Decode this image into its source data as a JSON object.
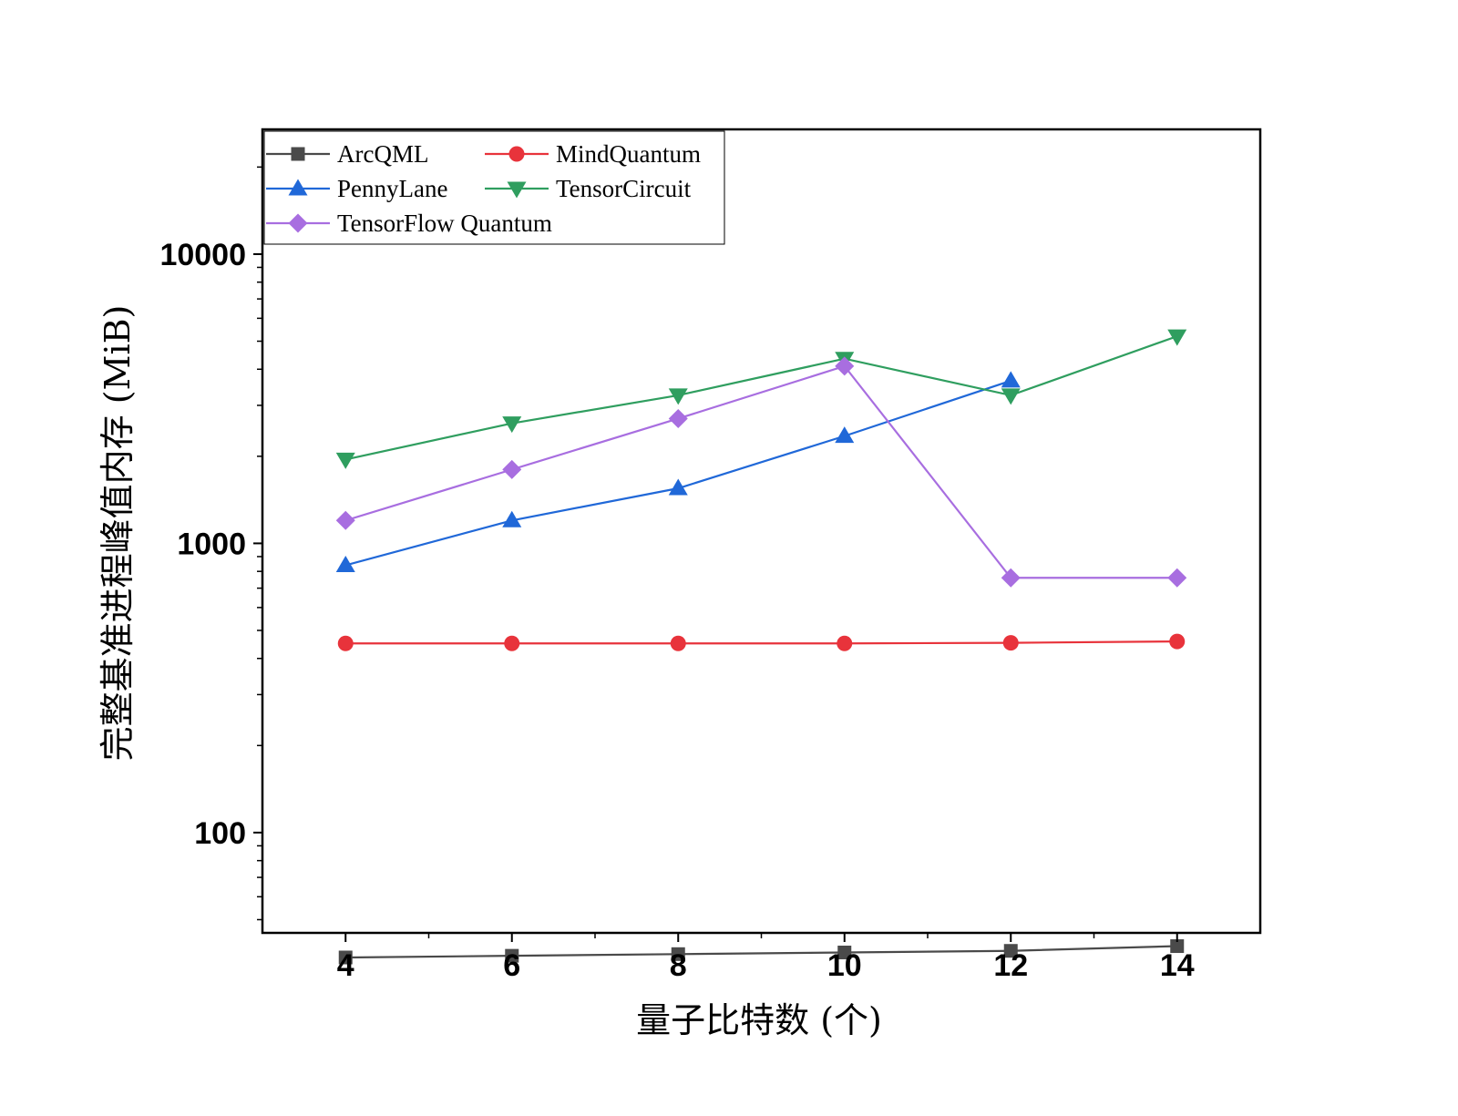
{
  "chart_data": {
    "type": "line",
    "xlabel": "量子比特数 (个)",
    "ylabel": "完整基准进程峰值内存 (MiB)",
    "x": [
      4,
      6,
      8,
      10,
      12,
      14
    ],
    "xlim": [
      3,
      15
    ],
    "x_ticks": [
      "4",
      "6",
      "8",
      "10",
      "12",
      "14"
    ],
    "yscale": "log",
    "ylim": [
      45,
      27000
    ],
    "y_ticks": [
      "100",
      "1000",
      "10000"
    ],
    "grid": false,
    "legend_position": "top-left",
    "series": [
      {
        "name": "ArcQML",
        "marker": "square",
        "color": "#4a4a4a",
        "values": [
          37,
          37.5,
          38,
          38.5,
          39,
          40.5
        ]
      },
      {
        "name": "MindQuantum",
        "marker": "circle",
        "color": "#e8333b",
        "values": [
          451,
          451,
          451,
          451,
          453,
          458
        ]
      },
      {
        "name": "PennyLane",
        "marker": "triangle-up",
        "color": "#2068d8",
        "values": [
          840,
          1200,
          1550,
          2350,
          3650,
          null
        ]
      },
      {
        "name": "TensorCircuit",
        "marker": "triangle-down",
        "color": "#2f9e5f",
        "values": [
          1950,
          2600,
          3250,
          4350,
          3250,
          5200
        ]
      },
      {
        "name": "TensorFlow Quantum",
        "marker": "diamond",
        "color": "#a86ee0",
        "values": [
          1200,
          1800,
          2700,
          4100,
          760,
          760
        ]
      }
    ]
  }
}
